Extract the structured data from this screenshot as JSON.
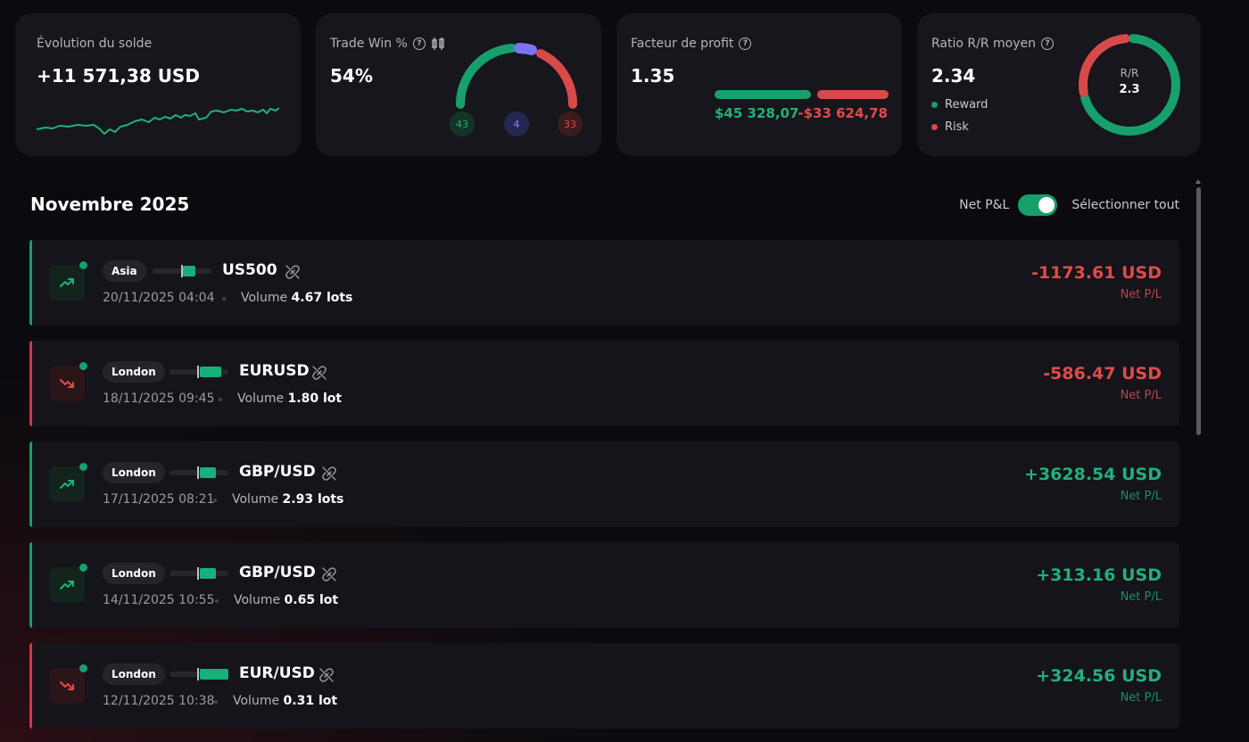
{
  "cards": {
    "balance": {
      "label": "Évolution du solde",
      "value": "+11 571,38 USD"
    },
    "winrate": {
      "label": "Trade Win %",
      "value": "54%",
      "wins": "43",
      "breakeven": "4",
      "losses": "33"
    },
    "profit_factor": {
      "label": "Facteur de profit",
      "value": "1.35",
      "gains": "$45 328,07",
      "losses": "-$33 624,78"
    },
    "rr": {
      "label": "Ratio R/R moyen",
      "value": "2.34",
      "donut_label": "R/R",
      "donut_value": "2.3",
      "legend_reward": "Reward",
      "legend_risk": "Risk"
    }
  },
  "section": {
    "title": "Novembre 2025",
    "toggle_label": "Net P&L",
    "select_all": "Sélectionner tout"
  },
  "trades": [
    {
      "session": "Asia",
      "symbol": "US500",
      "date": "20/11/2025 04:04",
      "volume_label": "Volume",
      "volume": "4.67 lots",
      "pnl": "-1173.61 USD",
      "pnl_label": "Net P/L",
      "direction": "up",
      "result": "loss"
    },
    {
      "session": "London",
      "symbol": "EURUSD",
      "date": "18/11/2025 09:45",
      "volume_label": "Volume",
      "volume": "1.80 lot",
      "pnl": "-586.47 USD",
      "pnl_label": "Net P/L",
      "direction": "down",
      "result": "loss"
    },
    {
      "session": "London",
      "symbol": "GBP/USD",
      "date": "17/11/2025 08:21",
      "volume_label": "Volume",
      "volume": "2.93 lots",
      "pnl": "+3628.54 USD",
      "pnl_label": "Net P/L",
      "direction": "up",
      "result": "win"
    },
    {
      "session": "London",
      "symbol": "GBP/USD",
      "date": "14/11/2025 10:55",
      "volume_label": "Volume",
      "volume": "0.65 lot",
      "pnl": "+313.16 USD",
      "pnl_label": "Net P/L",
      "direction": "up",
      "result": "win"
    },
    {
      "session": "London",
      "symbol": "EUR/USD",
      "date": "12/11/2025 10:38",
      "volume_label": "Volume",
      "volume": "0.31 lot",
      "pnl": "+324.56 USD",
      "pnl_label": "Net P/L",
      "direction": "down",
      "result": "win"
    }
  ],
  "colors": {
    "green": "#22b07a",
    "red": "#e24a4a",
    "purple": "#7b74f0",
    "bg": "#0b0b0f",
    "card": "#16161c"
  }
}
